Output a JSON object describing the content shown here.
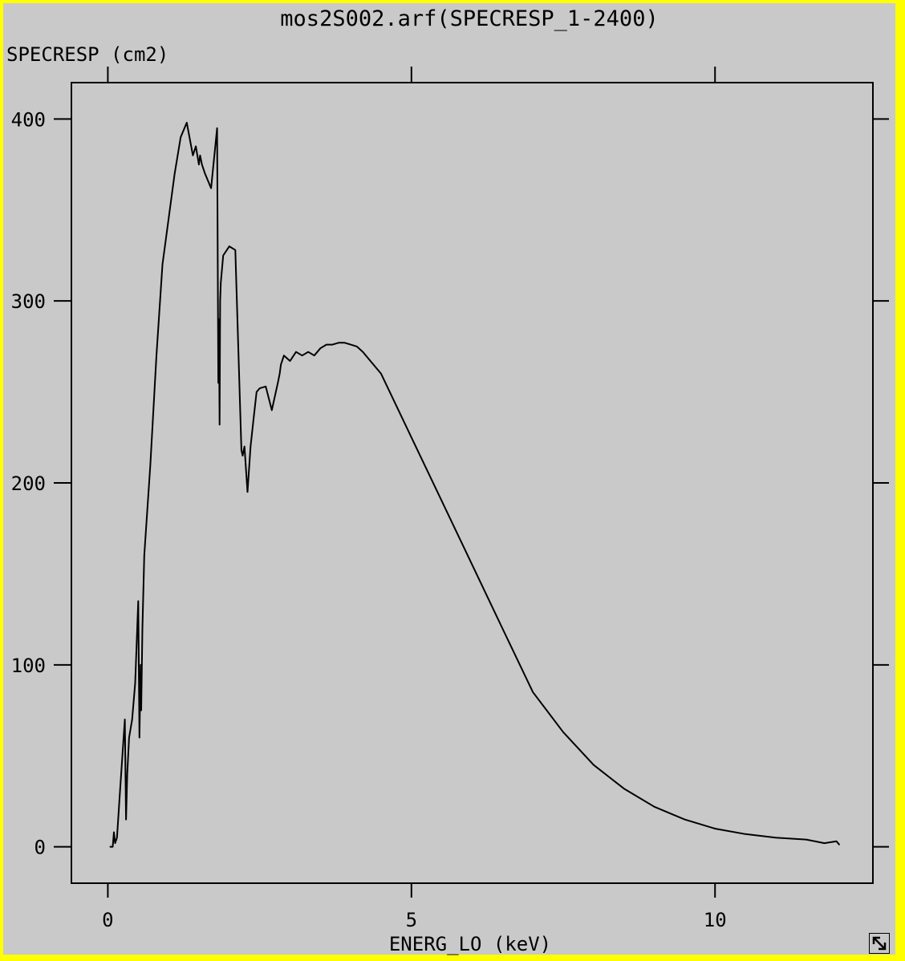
{
  "window": {
    "border_color": "#ffff00",
    "background_color": "#c9c9c9",
    "resize_icon": "resize-arrow-icon"
  },
  "chart_data": {
    "type": "line",
    "title": "mos2S002.arf(SPECRESP_1-2400)",
    "xlabel": "ENERG_LO (keV)",
    "ylabel": "SPECRESP (cm2)",
    "xlim": [
      -0.6,
      12.6
    ],
    "ylim": [
      -20,
      420
    ],
    "x_ticks": [
      0,
      5,
      10
    ],
    "y_ticks": [
      0,
      100,
      200,
      300,
      400
    ],
    "x_tick_labels": [
      "0",
      "5",
      "10"
    ],
    "y_tick_labels": [
      "0",
      "100",
      "200",
      "300",
      "400"
    ],
    "grid": false,
    "line_color": "#000000",
    "series": [
      {
        "x": [
          0.03,
          0.08,
          0.1,
          0.12,
          0.15,
          0.2,
          0.25,
          0.28,
          0.3,
          0.32,
          0.35,
          0.4,
          0.45,
          0.5,
          0.52,
          0.54,
          0.55,
          0.57,
          0.6,
          0.7,
          0.8,
          0.9,
          1.0,
          1.1,
          1.2,
          1.3,
          1.4,
          1.45,
          1.5,
          1.52,
          1.55,
          1.6,
          1.7,
          1.8,
          1.82,
          1.83,
          1.84,
          1.85,
          1.86,
          1.9,
          2.0,
          2.1,
          2.2,
          2.22,
          2.25,
          2.3,
          2.35,
          2.4,
          2.45,
          2.5,
          2.6,
          2.7,
          2.8,
          2.83,
          2.85,
          2.9,
          3.0,
          3.1,
          3.2,
          3.3,
          3.4,
          3.5,
          3.6,
          3.7,
          3.8,
          3.9,
          4.0,
          4.1,
          4.2,
          4.3,
          4.5,
          5.0,
          5.5,
          6.0,
          6.5,
          7.0,
          7.5,
          8.0,
          8.5,
          9.0,
          9.5,
          10.0,
          10.5,
          11.0,
          11.5,
          11.8,
          12.0,
          12.05
        ],
        "y": [
          0,
          0,
          8,
          2,
          5,
          30,
          55,
          70,
          15,
          40,
          60,
          70,
          90,
          135,
          60,
          100,
          75,
          120,
          160,
          210,
          270,
          320,
          345,
          370,
          390,
          398,
          380,
          385,
          375,
          380,
          375,
          370,
          362,
          395,
          255,
          290,
          232,
          300,
          310,
          325,
          330,
          328,
          218,
          215,
          220,
          195,
          220,
          235,
          250,
          252,
          253,
          240,
          255,
          260,
          265,
          270,
          267,
          272,
          270,
          272,
          270,
          274,
          276,
          276,
          277,
          277,
          276,
          275,
          272,
          268,
          260,
          225,
          190,
          155,
          120,
          85,
          63,
          45,
          32,
          22,
          15,
          10,
          7,
          5,
          4,
          2,
          3,
          1
        ]
      }
    ]
  }
}
